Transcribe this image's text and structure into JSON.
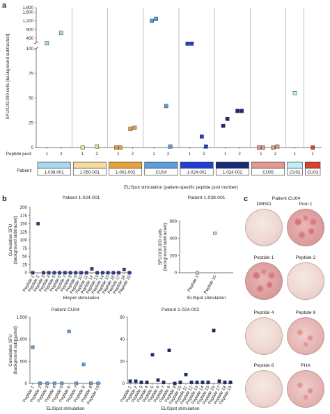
{
  "panel_labels": {
    "a": "a",
    "b": "b",
    "c": "c"
  },
  "panel_a": {
    "ylabel": "SFU/100,000 cells (background subtracted)",
    "pool_axis_label": "Peptide pool:",
    "patient_axis_label": "Patient:",
    "xlabel": "ELISpot stimulation (patient-specific peptide pool number)",
    "y_ticks_upper": [
      "1,800",
      "1,600",
      "1,200",
      "800",
      "400"
    ],
    "y_ticks_lower": [
      "100",
      "75",
      "50",
      "25",
      "0"
    ],
    "pool_ticks": [
      "1",
      "2"
    ],
    "patients": [
      {
        "name": "1-038-001",
        "color": "#a9d8f0",
        "pools": [
          "1",
          "2"
        ]
      },
      {
        "name": "1-050-001",
        "color": "#f7dc9e",
        "pools": [
          "1",
          "2"
        ]
      },
      {
        "name": "1-001-002",
        "color": "#e8a23a",
        "pools": [
          "1",
          "2"
        ]
      },
      {
        "name": "CU04",
        "color": "#5b9fdf",
        "pools": [
          "1",
          "2"
        ]
      },
      {
        "name": "1-024-001",
        "color": "#1f3fd6",
        "pools": [
          "1",
          "2"
        ]
      },
      {
        "name": "1-024-002",
        "color": "#1a2a7a",
        "pools": [
          "1",
          "2"
        ]
      },
      {
        "name": "CU05",
        "color": "#e59891",
        "pools": [
          "1",
          "2"
        ]
      },
      {
        "name": "CU02",
        "color": "#bdf0f5",
        "pools": [
          "1"
        ]
      },
      {
        "name": "CU03",
        "color": "#d9432a",
        "pools": [
          "1"
        ]
      }
    ]
  },
  "panel_b": {
    "plots": [
      {
        "title": "Patient 1-024-001",
        "ylabel": "Cumulative SFU (background subtracted)",
        "xlabel": "Elispot stimulation",
        "y_ticks": [
          "200",
          "175",
          "150",
          "125",
          "100",
          "75",
          "50",
          "25",
          "0"
        ],
        "x_ticks": [
          "Peptide 1",
          "Peptide 2",
          "Peptide 3",
          "Peptide 4",
          "Peptide 5",
          "Peptide 6",
          "Peptide 7",
          "Peptide 8",
          "Peptide 9",
          "Peptide 10",
          "Peptide 11",
          "Peptide 12",
          "Peptide 13",
          "Peptide 14",
          "Peptide 15",
          "Peptide 16",
          "Peptide 17",
          "Peptide 18",
          "Peptide 19"
        ]
      },
      {
        "title": "Patient 1-038-001",
        "ylabel": "SFU/100,000 cells (background subtracted)",
        "xlabel": "ELISpot stimulation",
        "y_ticks": [
          "600",
          "400",
          "200",
          "0"
        ],
        "x_ticks": [
          "Peptide 1",
          "Peptide 10"
        ]
      },
      {
        "title": "Patient CU04",
        "ylabel": "Cumulative SFU (background subtracted)",
        "xlabel": "ELISpot stimulation",
        "y_ticks": [
          "1,500",
          "1,000",
          "500",
          "0"
        ],
        "x_ticks": [
          "Peptide 1",
          "Peptide 2",
          "Peptide 3",
          "Peptide 4",
          "Peptide 5",
          "Peptide 6",
          "Peptide 7",
          "Peptide 8",
          "Peptide 9",
          "Peptide 10"
        ]
      },
      {
        "title": "Patient 1-024-002",
        "ylabel": "",
        "xlabel": "ELISpot stimulation",
        "y_ticks": [
          "60",
          "40",
          "20",
          "0"
        ],
        "x_ticks": [
          "Peptide 1",
          "Peptide 2",
          "Peptide 3",
          "Peptide 4",
          "Peptide 5",
          "Peptide 6",
          "Peptide 7",
          "Peptide 8",
          "Peptide 9",
          "Peptide 10",
          "Peptide 11",
          "Peptide 12",
          "Peptide 13",
          "Peptide 14",
          "Peptide 15",
          "Peptide 16",
          "Peptide 17",
          "Peptide 18",
          "Peptide 19"
        ]
      }
    ]
  },
  "panel_c": {
    "title": "Patient CU04",
    "wells": [
      {
        "label": "DMSO",
        "style": "pale"
      },
      {
        "label": "Pool 1",
        "style": "spot1"
      },
      {
        "label": "Peptide 1",
        "style": "spot1"
      },
      {
        "label": "Peptide 2",
        "style": "pale"
      },
      {
        "label": "Peptide 4",
        "style": "pale"
      },
      {
        "label": "Peptide 6",
        "style": "spot2"
      },
      {
        "label": "Peptide 8",
        "style": "pale"
      },
      {
        "label": "PHA",
        "style": "spot2"
      }
    ]
  },
  "chart_data": [
    {
      "type": "scatter",
      "title": "",
      "ylabel": "SFU/100,000 cells (background subtracted)",
      "xlabel": "ELISpot stimulation (patient-specific peptide pool number)",
      "ylim_lower": [
        0,
        100
      ],
      "ylim_upper": [
        200,
        1800
      ],
      "y_axis_break": true,
      "series": [
        {
          "name": "1-038-001",
          "color": "#a9d8f0",
          "points": [
            {
              "pool": 1,
              "y": 160
            },
            {
              "pool": 2,
              "y": 640
            }
          ]
        },
        {
          "name": "1-050-001",
          "color": "#f7dc9e",
          "points": [
            {
              "pool": 1,
              "y": 0
            },
            {
              "pool": 2,
              "y": 1
            }
          ]
        },
        {
          "name": "1-001-002",
          "color": "#e8a23a",
          "points": [
            {
              "pool": 1,
              "y": 0
            },
            {
              "pool": 1,
              "y": 0
            },
            {
              "pool": 2,
              "y": 19
            },
            {
              "pool": 2,
              "y": 20
            }
          ]
        },
        {
          "name": "CU04",
          "color": "#5b9fdf",
          "points": [
            {
              "pool": 1,
              "y": 1200
            },
            {
              "pool": 1,
              "y": 1290
            },
            {
              "pool": 2,
              "y": 42
            },
            {
              "pool": 2,
              "y": 1
            }
          ]
        },
        {
          "name": "1-024-001",
          "color": "#1f3fd6",
          "points": [
            {
              "pool": 1,
              "y": 142
            },
            {
              "pool": 1,
              "y": 144
            },
            {
              "pool": 2,
              "y": 11
            },
            {
              "pool": 2,
              "y": 1
            }
          ]
        },
        {
          "name": "1-024-002",
          "color": "#1a2a7a",
          "points": [
            {
              "pool": 1,
              "y": 22
            },
            {
              "pool": 1,
              "y": 29
            },
            {
              "pool": 2,
              "y": 37
            },
            {
              "pool": 2,
              "y": 37
            }
          ]
        },
        {
          "name": "CU05",
          "color": "#e59891",
          "points": [
            {
              "pool": 1,
              "y": 0
            },
            {
              "pool": 1,
              "y": 0
            },
            {
              "pool": 2,
              "y": 0
            },
            {
              "pool": 2,
              "y": 1
            }
          ]
        },
        {
          "name": "CU02",
          "color": "#bdf0f5",
          "points": [
            {
              "pool": 1,
              "y": 55
            }
          ]
        },
        {
          "name": "CU03",
          "color": "#d9432a",
          "points": [
            {
              "pool": 1,
              "y": 0
            }
          ]
        }
      ]
    },
    {
      "type": "scatter",
      "title": "Patient 1-024-001",
      "xlabel": "Elispot stimulation",
      "ylabel": "Cumulative SFU (background subtracted)",
      "ylim": [
        0,
        200
      ],
      "categories": [
        "Peptide 1",
        "Peptide 2",
        "Peptide 3",
        "Peptide 4",
        "Peptide 5",
        "Peptide 6",
        "Peptide 7",
        "Peptide 8",
        "Peptide 9",
        "Peptide 10",
        "Peptide 11",
        "Peptide 12",
        "Peptide 13",
        "Peptide 14",
        "Peptide 15",
        "Peptide 16",
        "Peptide 17",
        "Peptide 18",
        "Peptide 19"
      ],
      "values": [
        0,
        150,
        0,
        0,
        0,
        0,
        0,
        0,
        0,
        0,
        0,
        12,
        0,
        0,
        0,
        0,
        0,
        10,
        0
      ]
    },
    {
      "type": "scatter",
      "title": "Patient 1-038-001",
      "xlabel": "ELISpot stimulation",
      "ylabel": "SFU/100,000 cells (background subtracted)",
      "ylim": [
        0,
        600
      ],
      "categories": [
        "Peptide 1",
        "Peptide 10"
      ],
      "values": [
        0,
        460
      ]
    },
    {
      "type": "scatter",
      "title": "Patient CU04",
      "xlabel": "ELISpot stimulation",
      "ylabel": "Cumulative SFU (background subtracted)",
      "ylim": [
        0,
        1500
      ],
      "categories": [
        "Peptide 1",
        "Peptide 2",
        "Peptide 3",
        "Peptide 4",
        "Peptide 5",
        "Peptide 6",
        "Peptide 7",
        "Peptide 8",
        "Peptide 9",
        "Peptide 10"
      ],
      "values": [
        820,
        0,
        0,
        0,
        0,
        1180,
        0,
        430,
        0,
        0
      ]
    },
    {
      "type": "scatter",
      "title": "Patient 1-024-002",
      "xlabel": "ELISpot stimulation",
      "ylabel": "",
      "ylim": [
        0,
        60
      ],
      "categories": [
        "Peptide 1",
        "Peptide 2",
        "Peptide 3",
        "Peptide 4",
        "Peptide 5",
        "Peptide 6",
        "Peptide 7",
        "Peptide 8",
        "Peptide 9",
        "Peptide 10",
        "Peptide 11",
        "Peptide 12",
        "Peptide 13",
        "Peptide 14",
        "Peptide 15",
        "Peptide 16",
        "Peptide 17",
        "Peptide 18",
        "Peptide 19"
      ],
      "values": [
        2,
        2,
        1,
        1,
        26,
        3,
        1,
        30,
        0,
        1,
        8,
        1,
        1,
        1,
        1,
        48,
        2,
        1,
        1
      ]
    }
  ]
}
